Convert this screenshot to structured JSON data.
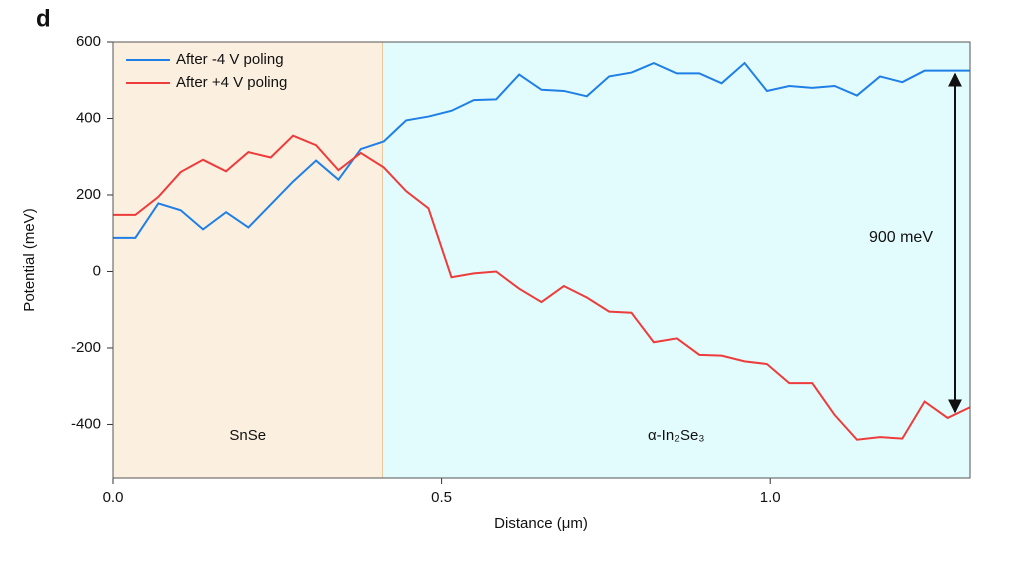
{
  "chart_data": {
    "type": "line",
    "panel_label": "d",
    "x_label": "Distance (μm)",
    "y_label": "Potential (meV)",
    "x": [
      0,
      0.034,
      0.069,
      0.103,
      0.137,
      0.172,
      0.206,
      0.24,
      0.274,
      0.309,
      0.343,
      0.377,
      0.412,
      0.446,
      0.48,
      0.515,
      0.549,
      0.583,
      0.618,
      0.652,
      0.686,
      0.721,
      0.755,
      0.789,
      0.823,
      0.858,
      0.892,
      0.926,
      0.961,
      0.995,
      1.029,
      1.064,
      1.098,
      1.132,
      1.167,
      1.201,
      1.235,
      1.27,
      1.304
    ],
    "series": [
      {
        "name": "After -4 V poling",
        "color": "#1f7fe6",
        "values": [
          88,
          88,
          178,
          160,
          110,
          155,
          115,
          175,
          235,
          290,
          240,
          320,
          340,
          395,
          405,
          420,
          448,
          450,
          515,
          475,
          472,
          458,
          510,
          520,
          545,
          518,
          518,
          492,
          545,
          472,
          485,
          480,
          485,
          460,
          510,
          495,
          525,
          525,
          525
        ]
      },
      {
        "name": "After +4 V poling",
        "color": "#ee3b3b",
        "values": [
          148,
          148,
          195,
          260,
          292,
          262,
          312,
          298,
          355,
          330,
          265,
          310,
          272,
          210,
          165,
          -15,
          -5,
          0,
          -45,
          -80,
          -38,
          -68,
          -105,
          -108,
          -185,
          -175,
          -218,
          -220,
          -235,
          -242,
          -292,
          -292,
          -375,
          -440,
          -433,
          -437,
          -340,
          -383,
          -355
        ]
      }
    ],
    "regions": [
      {
        "label": "SnSe",
        "xlim": [
          0,
          0.41
        ],
        "color": "#fbf0e0"
      },
      {
        "label": "α-In₂Se₃",
        "xlim": [
          0.41,
          1.304
        ],
        "color": "#e2fbfc"
      }
    ],
    "annotation": "900 meV",
    "xlim": [
      0,
      1.304
    ],
    "ylim": [
      -540,
      600
    ],
    "xticks": [
      {
        "value": 0,
        "label": "0.0"
      },
      0.5,
      {
        "value": 1,
        "label": "1.0"
      }
    ],
    "yticks": [
      -400,
      -200,
      0,
      200,
      400,
      600
    ],
    "legend": "upper-left"
  }
}
